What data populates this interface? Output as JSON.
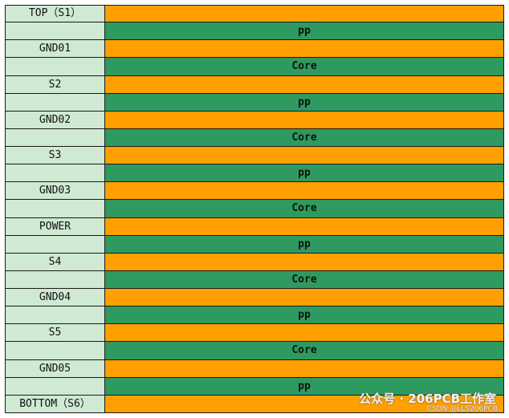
{
  "table": {
    "rows": [
      {
        "layer": "TOP（S1）"
      },
      {
        "dielectric": "pp"
      },
      {
        "layer": "GND01"
      },
      {
        "dielectric": "Core"
      },
      {
        "layer": "S2"
      },
      {
        "dielectric": "pp"
      },
      {
        "layer": "GND02"
      },
      {
        "dielectric": "Core"
      },
      {
        "layer": "S3"
      },
      {
        "dielectric": "pp"
      },
      {
        "layer": "GND03"
      },
      {
        "dielectric": "Core"
      },
      {
        "layer": "POWER"
      },
      {
        "dielectric": "pp"
      },
      {
        "layer": "S4"
      },
      {
        "dielectric": "Core"
      },
      {
        "layer": "GND04"
      },
      {
        "dielectric": "pp"
      },
      {
        "layer": "S5"
      },
      {
        "dielectric": "Core"
      },
      {
        "layer": "GND05"
      },
      {
        "dielectric": "pp"
      },
      {
        "layer": "BOTTOM（S6）"
      }
    ]
  },
  "watermark": {
    "main": "公众号 · 206PCB工作室",
    "sub": "CSDN @LLS206PCB"
  }
}
